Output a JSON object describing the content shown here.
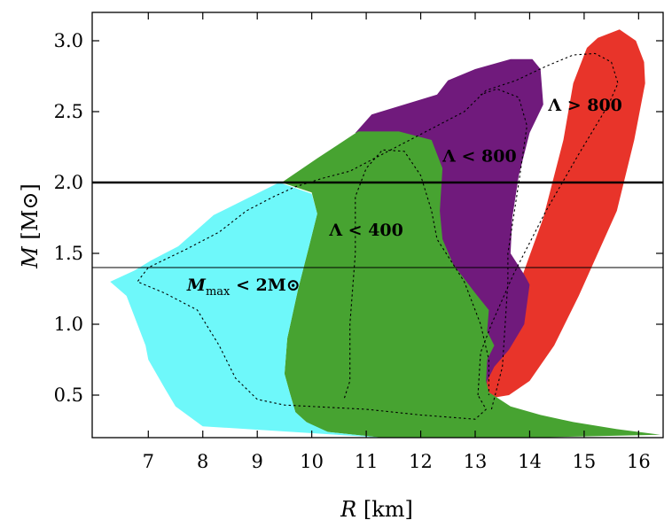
{
  "chart_data": {
    "type": "area",
    "title": "",
    "xlabel": "R [km]",
    "ylabel": "M [M⊙]",
    "xlim": [
      5.97,
      16.45
    ],
    "ylim": [
      0.2,
      3.2
    ],
    "x_ticks": [
      7,
      8,
      9,
      10,
      11,
      12,
      13,
      14,
      15,
      16
    ],
    "y_ticks": [
      0.5,
      1.0,
      1.5,
      2.0,
      2.5,
      3.0
    ],
    "x_tick_labels": [
      "7",
      "8",
      "9",
      "10",
      "11",
      "12",
      "13",
      "14",
      "15",
      "16"
    ],
    "y_tick_labels": [
      "0.5",
      "1.0",
      "1.5",
      "2.0",
      "2.5",
      "3.0"
    ],
    "colors": {
      "lambda_gt_800": "#e8342a",
      "lambda_lt_800": "#701a7c",
      "lambda_lt_400": "#47a331",
      "mmax_lt_2": "#6ef8fa"
    },
    "series": [
      {
        "name": "Lambda > 800",
        "label": "Λ > 800",
        "color": "#e8342a",
        "polygon": [
          [
            13.2,
            0.52
          ],
          [
            13.22,
            0.72
          ],
          [
            13.5,
            0.95
          ],
          [
            13.75,
            1.22
          ],
          [
            14.25,
            1.75
          ],
          [
            14.62,
            2.3
          ],
          [
            14.8,
            2.7
          ],
          [
            15.05,
            2.95
          ],
          [
            15.25,
            3.02
          ],
          [
            15.65,
            3.08
          ],
          [
            15.95,
            3.0
          ],
          [
            16.1,
            2.85
          ],
          [
            16.12,
            2.7
          ],
          [
            15.92,
            2.3
          ],
          [
            15.6,
            1.8
          ],
          [
            14.9,
            1.2
          ],
          [
            14.45,
            0.85
          ],
          [
            14.0,
            0.6
          ],
          [
            13.62,
            0.5
          ],
          [
            13.3,
            0.48
          ]
        ]
      },
      {
        "name": "Lambda < 800",
        "label": "Λ < 800",
        "color": "#701a7c",
        "polygon": [
          [
            10.8,
            2.35
          ],
          [
            11.1,
            2.48
          ],
          [
            12.3,
            2.62
          ],
          [
            12.5,
            2.72
          ],
          [
            13.0,
            2.8
          ],
          [
            13.65,
            2.87
          ],
          [
            14.05,
            2.87
          ],
          [
            14.2,
            2.8
          ],
          [
            14.25,
            2.55
          ],
          [
            14.0,
            2.35
          ],
          [
            13.8,
            2.05
          ],
          [
            13.68,
            1.75
          ],
          [
            13.65,
            1.5
          ],
          [
            13.9,
            1.35
          ],
          [
            14.0,
            1.28
          ],
          [
            13.9,
            1.0
          ],
          [
            13.62,
            0.82
          ],
          [
            13.35,
            0.7
          ],
          [
            13.22,
            0.6
          ],
          [
            13.2,
            0.52
          ],
          [
            12.8,
            0.5
          ],
          [
            12.1,
            0.5
          ],
          [
            12.0,
            1.5
          ],
          [
            11.8,
            2.0
          ]
        ]
      },
      {
        "name": "Lambda < 400",
        "label": "Λ < 400",
        "color": "#47a331",
        "polygon": [
          [
            9.45,
            2.0
          ],
          [
            10.1,
            2.17
          ],
          [
            10.85,
            2.36
          ],
          [
            11.6,
            2.36
          ],
          [
            12.2,
            2.3
          ],
          [
            12.4,
            2.1
          ],
          [
            12.35,
            1.8
          ],
          [
            12.4,
            1.6
          ],
          [
            12.6,
            1.42
          ],
          [
            13.0,
            1.22
          ],
          [
            13.25,
            1.1
          ],
          [
            13.22,
            0.95
          ],
          [
            13.35,
            0.85
          ],
          [
            13.22,
            0.75
          ],
          [
            13.2,
            0.6
          ],
          [
            13.25,
            0.52
          ],
          [
            13.65,
            0.42
          ],
          [
            14.2,
            0.36
          ],
          [
            14.8,
            0.31
          ],
          [
            15.6,
            0.26
          ],
          [
            16.4,
            0.22
          ],
          [
            14.0,
            0.2
          ],
          [
            11.3,
            0.2
          ],
          [
            10.3,
            0.24
          ],
          [
            10.2,
            0.25
          ],
          [
            9.9,
            0.31
          ],
          [
            9.7,
            0.38
          ],
          [
            9.6,
            0.51
          ],
          [
            9.5,
            0.65
          ],
          [
            9.55,
            0.9
          ],
          [
            9.75,
            1.25
          ],
          [
            9.95,
            1.55
          ],
          [
            10.1,
            1.78
          ],
          [
            10.0,
            1.93
          ]
        ]
      },
      {
        "name": "M_max < 2 M_sun",
        "label": "M_max < 2M⊙",
        "color": "#6ef8fa",
        "polygon": [
          [
            6.3,
            1.3
          ],
          [
            6.75,
            1.38
          ],
          [
            7.05,
            1.45
          ],
          [
            7.55,
            1.55
          ],
          [
            8.2,
            1.77
          ],
          [
            9.4,
            2.0
          ],
          [
            10.0,
            1.92
          ],
          [
            10.1,
            1.78
          ],
          [
            9.95,
            1.55
          ],
          [
            9.75,
            1.25
          ],
          [
            9.55,
            0.9
          ],
          [
            9.5,
            0.65
          ],
          [
            9.6,
            0.51
          ],
          [
            9.7,
            0.38
          ],
          [
            9.9,
            0.31
          ],
          [
            10.3,
            0.24
          ],
          [
            11.3,
            0.2
          ],
          [
            8.0,
            0.28
          ],
          [
            7.5,
            0.42
          ],
          [
            7.3,
            0.55
          ],
          [
            7.0,
            0.75
          ],
          [
            6.95,
            0.85
          ],
          [
            6.6,
            1.2
          ]
        ]
      }
    ],
    "dotted_curves": [
      {
        "name": "envelope",
        "points": [
          [
            13.05,
            0.5
          ],
          [
            13.1,
            0.8
          ],
          [
            13.3,
            1.0
          ],
          [
            13.7,
            1.35
          ],
          [
            14.3,
            1.8
          ],
          [
            14.9,
            2.2
          ],
          [
            15.45,
            2.55
          ],
          [
            15.62,
            2.7
          ],
          [
            15.5,
            2.85
          ],
          [
            15.2,
            2.91
          ],
          [
            14.8,
            2.9
          ],
          [
            14.3,
            2.82
          ],
          [
            13.75,
            2.72
          ],
          [
            13.2,
            2.65
          ],
          [
            12.8,
            2.5
          ],
          [
            12.3,
            2.4
          ],
          [
            11.8,
            2.3
          ],
          [
            11.3,
            2.2
          ],
          [
            10.7,
            2.08
          ],
          [
            10.2,
            2.03
          ],
          [
            9.7,
            1.97
          ],
          [
            9.3,
            1.9
          ],
          [
            8.8,
            1.8
          ],
          [
            8.3,
            1.65
          ],
          [
            7.7,
            1.53
          ],
          [
            7.0,
            1.4
          ],
          [
            6.8,
            1.3
          ],
          [
            7.3,
            1.22
          ],
          [
            7.9,
            1.1
          ],
          [
            8.3,
            0.85
          ],
          [
            8.6,
            0.62
          ],
          [
            9.0,
            0.47
          ],
          [
            9.5,
            0.43
          ],
          [
            10.0,
            0.42
          ],
          [
            11.0,
            0.4
          ],
          [
            12.0,
            0.36
          ],
          [
            13.0,
            0.33
          ],
          [
            13.2,
            0.4
          ],
          [
            13.05,
            0.5
          ]
        ]
      },
      {
        "name": "lambda-800-boundary",
        "points": [
          [
            13.3,
            0.4
          ],
          [
            13.5,
            0.7
          ],
          [
            13.6,
            1.3
          ],
          [
            13.6,
            1.5
          ],
          [
            13.8,
            2.0
          ],
          [
            13.95,
            2.4
          ],
          [
            13.8,
            2.6
          ],
          [
            13.4,
            2.66
          ],
          [
            13.1,
            2.62
          ]
        ]
      },
      {
        "name": "lambda-400-boundary",
        "points": [
          [
            10.6,
            0.48
          ],
          [
            10.7,
            0.6
          ],
          [
            10.7,
            1.0
          ],
          [
            10.8,
            1.5
          ],
          [
            10.8,
            1.9
          ],
          [
            11.0,
            2.1
          ],
          [
            11.3,
            2.23
          ],
          [
            11.7,
            2.22
          ],
          [
            12.0,
            2.05
          ],
          [
            12.2,
            1.8
          ],
          [
            12.3,
            1.6
          ],
          [
            12.8,
            1.3
          ],
          [
            13.1,
            1.0
          ],
          [
            13.25,
            0.75
          ],
          [
            13.25,
            0.5
          ]
        ]
      }
    ],
    "hlines": [
      {
        "y": 2.0,
        "style": "thick"
      },
      {
        "y": 1.4,
        "style": "thin"
      }
    ],
    "annotations": [
      {
        "text": "Λ > 800",
        "x": 15.02,
        "y": 2.55
      },
      {
        "text": "Λ < 800",
        "x": 13.08,
        "y": 2.19
      },
      {
        "text": "Λ < 400",
        "x": 11.0,
        "y": 1.67
      },
      {
        "text": "M_max < 2M⊙",
        "x": 8.75,
        "y": 1.28
      }
    ]
  }
}
